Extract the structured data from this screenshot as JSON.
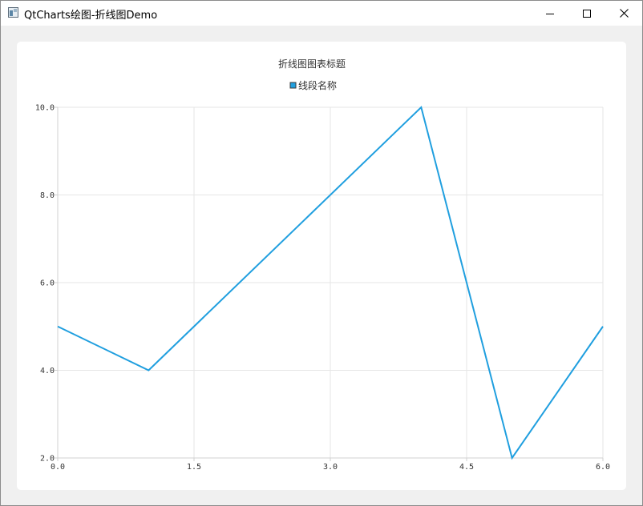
{
  "window": {
    "title": "QtCharts绘图-折线图Demo",
    "icon": "app-window-icon",
    "controls": {
      "minimize": "minimize-icon",
      "maximize": "maximize-icon",
      "close": "close-icon"
    }
  },
  "chart_data": {
    "type": "line",
    "title": "折线图图表标题",
    "legend": {
      "placement": "top-center"
    },
    "series": [
      {
        "name": "线段名称",
        "color": "#209fdf",
        "x": [
          0,
          1,
          4,
          5,
          6
        ],
        "y": [
          5,
          4,
          10,
          2,
          5
        ]
      }
    ],
    "xlim": [
      0,
      6
    ],
    "ylim": [
      2,
      10
    ],
    "x_ticks": [
      "0.0",
      "1.5",
      "3.0",
      "4.5",
      "6.0"
    ],
    "y_ticks": [
      "2.0",
      "4.0",
      "6.0",
      "8.0",
      "10.0"
    ],
    "grid": true,
    "colors": {
      "grid": "#e6e6e6",
      "axis": "#d0d0d0"
    }
  }
}
